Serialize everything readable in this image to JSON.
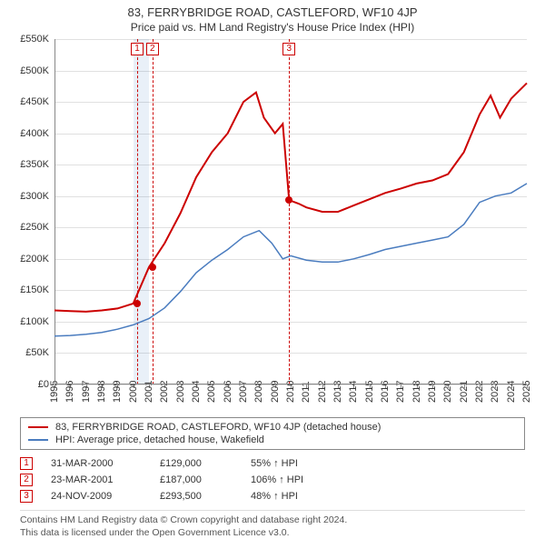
{
  "title": "83, FERRYBRIDGE ROAD, CASTLEFORD, WF10 4JP",
  "subtitle": "Price paid vs. HM Land Registry's House Price Index (HPI)",
  "chart": {
    "type": "line",
    "ylim": [
      0,
      550000
    ],
    "ytick_step": 50000,
    "y_labels": [
      "£0",
      "£50K",
      "£100K",
      "£150K",
      "£200K",
      "£250K",
      "£300K",
      "£350K",
      "£400K",
      "£450K",
      "£500K",
      "£550K"
    ],
    "xlim": [
      1995,
      2025
    ],
    "x_labels": [
      "1995",
      "1996",
      "1997",
      "1998",
      "1999",
      "2000",
      "2001",
      "2002",
      "2003",
      "2004",
      "2005",
      "2006",
      "2007",
      "2008",
      "2009",
      "2010",
      "2011",
      "2012",
      "2013",
      "2014",
      "2015",
      "2016",
      "2017",
      "2018",
      "2019",
      "2020",
      "2021",
      "2022",
      "2023",
      "2024",
      "2025"
    ],
    "grid_color": "#e0e0e0",
    "background_color": "#ffffff",
    "series": [
      {
        "name": "price_paid",
        "label": "83, FERRYBRIDGE ROAD, CASTLEFORD, WF10 4JP (detached house)",
        "color": "#cc0000",
        "line_width": 2,
        "points": [
          [
            1995,
            118000
          ],
          [
            1996,
            117000
          ],
          [
            1997,
            116000
          ],
          [
            1998,
            118000
          ],
          [
            1999,
            121000
          ],
          [
            2000,
            129000
          ],
          [
            2001,
            187000
          ],
          [
            2002,
            225000
          ],
          [
            2003,
            273000
          ],
          [
            2004,
            330000
          ],
          [
            2005,
            370000
          ],
          [
            2006,
            400000
          ],
          [
            2007,
            450000
          ],
          [
            2007.8,
            465000
          ],
          [
            2008.3,
            425000
          ],
          [
            2009,
            400000
          ],
          [
            2009.5,
            415000
          ],
          [
            2009.9,
            293500
          ],
          [
            2010.5,
            288000
          ],
          [
            2011,
            282000
          ],
          [
            2012,
            275000
          ],
          [
            2013,
            275000
          ],
          [
            2014,
            285000
          ],
          [
            2015,
            295000
          ],
          [
            2016,
            305000
          ],
          [
            2017,
            312000
          ],
          [
            2018,
            320000
          ],
          [
            2019,
            325000
          ],
          [
            2020,
            335000
          ],
          [
            2021,
            370000
          ],
          [
            2022,
            430000
          ],
          [
            2022.7,
            460000
          ],
          [
            2023.3,
            425000
          ],
          [
            2024,
            455000
          ],
          [
            2025,
            480000
          ]
        ]
      },
      {
        "name": "hpi",
        "label": "HPI: Average price, detached house, Wakefield",
        "color": "#4a7cbf",
        "line_width": 1.5,
        "points": [
          [
            1995,
            77000
          ],
          [
            1996,
            78000
          ],
          [
            1997,
            80000
          ],
          [
            1998,
            83000
          ],
          [
            1999,
            88000
          ],
          [
            2000,
            95000
          ],
          [
            2001,
            105000
          ],
          [
            2002,
            122000
          ],
          [
            2003,
            148000
          ],
          [
            2004,
            178000
          ],
          [
            2005,
            198000
          ],
          [
            2006,
            215000
          ],
          [
            2007,
            235000
          ],
          [
            2008,
            245000
          ],
          [
            2008.8,
            225000
          ],
          [
            2009.5,
            200000
          ],
          [
            2010,
            205000
          ],
          [
            2011,
            198000
          ],
          [
            2012,
            195000
          ],
          [
            2013,
            195000
          ],
          [
            2014,
            200000
          ],
          [
            2015,
            207000
          ],
          [
            2016,
            215000
          ],
          [
            2017,
            220000
          ],
          [
            2018,
            225000
          ],
          [
            2019,
            230000
          ],
          [
            2020,
            235000
          ],
          [
            2021,
            255000
          ],
          [
            2022,
            290000
          ],
          [
            2023,
            300000
          ],
          [
            2024,
            305000
          ],
          [
            2025,
            320000
          ]
        ]
      }
    ],
    "shaded_ranges": [
      {
        "from": 2000,
        "to": 2001,
        "color": "rgba(70,130,200,0.12)"
      }
    ],
    "sale_markers": [
      {
        "num": "1",
        "year": 2000.25,
        "price": 129000
      },
      {
        "num": "2",
        "year": 2001.22,
        "price": 187000
      },
      {
        "num": "3",
        "year": 2009.9,
        "price": 293500
      }
    ]
  },
  "legend": {
    "items": [
      {
        "color": "#cc0000",
        "label": "83, FERRYBRIDGE ROAD, CASTLEFORD, WF10 4JP (detached house)"
      },
      {
        "color": "#4a7cbf",
        "label": "HPI: Average price, detached house, Wakefield"
      }
    ]
  },
  "sales_table": {
    "rows": [
      {
        "num": "1",
        "date": "31-MAR-2000",
        "price": "£129,000",
        "relative": "55% ↑ HPI"
      },
      {
        "num": "2",
        "date": "23-MAR-2001",
        "price": "£187,000",
        "relative": "106% ↑ HPI"
      },
      {
        "num": "3",
        "date": "24-NOV-2009",
        "price": "£293,500",
        "relative": "48% ↑ HPI"
      }
    ]
  },
  "attribution": {
    "line1": "Contains HM Land Registry data © Crown copyright and database right 2024.",
    "line2": "This data is licensed under the Open Government Licence v3.0."
  }
}
